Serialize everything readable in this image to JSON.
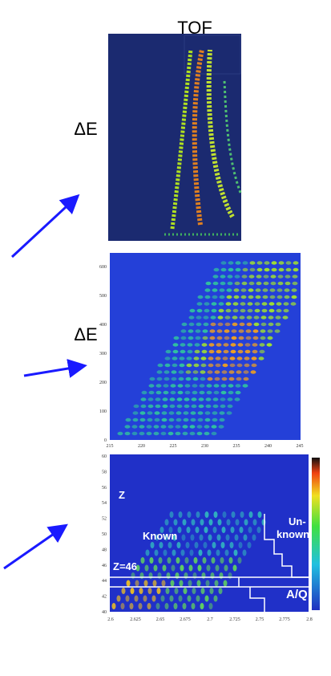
{
  "panel_1": {
    "title": "TOF",
    "ylabel": "ΔE"
  },
  "panel_2": {
    "ylabel": "ΔE",
    "yticks": [
      0,
      100,
      200,
      300,
      400,
      500,
      600
    ],
    "xticks": [
      215,
      220,
      225,
      230,
      235,
      240,
      245
    ]
  },
  "panel_3": {
    "yticks": [
      40,
      42,
      44,
      46,
      48,
      50,
      52,
      54,
      56,
      58,
      60
    ],
    "xticks": [
      2.6,
      2.625,
      2.65,
      2.675,
      2.7,
      2.725,
      2.75,
      2.775,
      2.8
    ],
    "labels": {
      "z": "Z",
      "known": "Known",
      "unknown_1": "Un-",
      "unknown_2": "known",
      "z46": "Z=46",
      "aq": "A/Q"
    }
  }
}
